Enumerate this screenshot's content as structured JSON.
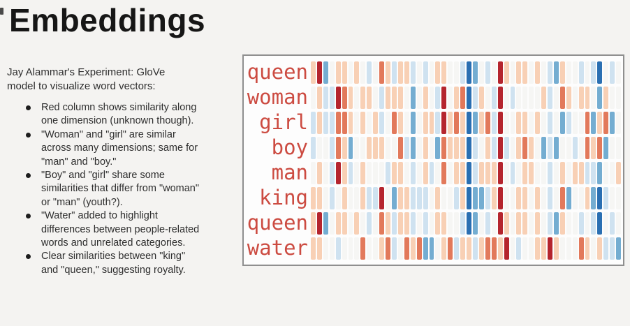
{
  "title": "Embeddings",
  "left_panel": {
    "intro": "Jay Alammar's Experiment: GloVe model to visualize word vectors:",
    "bullets": [
      "Red column shows similarity along one dimension (unknown though).",
      "\"Woman\" and \"girl\" are similar across many dimensions; same for \"man\" and \"boy.\"",
      "\"Boy\" and \"girl\" share some similarities that differ from \"woman\" or \"man\" (youth?).",
      "\"Water\" added to highlight differences between people-related words and unrelated categories.",
      "Clear similarities between \"king\" and \"queen,\" suggesting royalty."
    ]
  },
  "heatmap": {
    "label_color": "#cc4b41",
    "border_color": "#8f8f8f",
    "background": "#fdfdfd",
    "palette": {
      "2": "#b5252e",
      "1": "#e2795b",
      "0.5": "#f8d0b5",
      "0": "#f6f6f4",
      "-0.5": "#cfe2f0",
      "-1": "#74add1",
      "-2": "#2a6fb2"
    }
  },
  "chart_data": {
    "type": "heatmap",
    "title": "GloVe word vectors visualized as colored cells (one row per word, 50 dimensions)",
    "y_labels": [
      "queen",
      "woman",
      "girl",
      "boy",
      "man",
      "king",
      "queen",
      "water"
    ],
    "x_axis": "50 embedding dimensions (unlabeled)",
    "colormap": "diverging red-white-blue (red = high value, blue = low value)",
    "value_levels": {
      "2": "dark red",
      "1": "salmon",
      "0.5": "peach",
      "0": "near-white",
      "-0.5": "light blue",
      "-1": "medium blue",
      "-2": "dark blue"
    },
    "legend": "none shown",
    "grid": false,
    "rows": [
      [
        0.5,
        2,
        -1,
        0,
        0.5,
        0.5,
        0,
        0.5,
        0,
        -0.5,
        0,
        1,
        0.5,
        -0.5,
        0.5,
        0.5,
        -0.5,
        0,
        -0.5,
        0,
        0.5,
        0.5,
        0,
        0,
        -0.5,
        -2,
        -1,
        0,
        -0.5,
        0,
        2,
        0.5,
        0,
        0.5,
        0.5,
        0,
        0.5,
        0,
        -0.5,
        -1,
        0.5,
        0,
        0,
        -0.5,
        0,
        -0.5,
        -2,
        0,
        -0.5,
        0
      ],
      [
        0,
        0.5,
        -0.5,
        -0.5,
        2,
        1,
        0.5,
        0,
        0.5,
        0.5,
        0,
        -0.5,
        0.5,
        0.5,
        0.5,
        0,
        -1,
        0,
        0.5,
        0,
        -0.5,
        2,
        0,
        0.5,
        1,
        -2,
        -0.5,
        0.5,
        0,
        -0.5,
        2,
        0,
        -0.5,
        0,
        0,
        0,
        0,
        0.5,
        -0.5,
        0,
        1,
        0.5,
        0,
        0.5,
        0.5,
        0,
        -1,
        0.5,
        0,
        0
      ],
      [
        -0.5,
        0.5,
        -0.5,
        -0.5,
        1,
        1,
        0.5,
        0,
        0.5,
        0,
        0.5,
        -0.5,
        0,
        1,
        0.5,
        0,
        -1,
        0,
        0.5,
        0.5,
        -0.5,
        2,
        0.5,
        1,
        0.5,
        -2,
        -1,
        0.5,
        1,
        -0.5,
        2,
        0,
        0,
        0.5,
        0.5,
        0,
        0.5,
        0,
        -0.5,
        0,
        -1,
        -0.5,
        0,
        0,
        1,
        -1,
        0.5,
        1,
        -1,
        0
      ],
      [
        -0.5,
        0,
        0,
        -0.5,
        1,
        0.5,
        -1,
        0,
        0,
        0.5,
        0.5,
        0.5,
        0,
        0,
        1,
        -0.5,
        -1,
        0,
        0.5,
        0,
        -1,
        1,
        0.5,
        0.5,
        0.5,
        -2,
        -0.5,
        0,
        0.5,
        -0.5,
        2,
        -0.5,
        0,
        0.5,
        1,
        0.5,
        0,
        -1,
        -0.5,
        -1,
        0,
        0,
        -0.5,
        0,
        1,
        0.5,
        1,
        -1,
        0,
        0
      ],
      [
        0,
        0.5,
        0,
        -0.5,
        2,
        0.5,
        -0.5,
        0,
        0.5,
        0,
        0,
        0,
        -0.5,
        0.5,
        0.5,
        0,
        -0.5,
        0,
        0.5,
        -0.5,
        0,
        1,
        0,
        0.5,
        0.5,
        -2,
        -0.5,
        0.5,
        0.5,
        0.5,
        2,
        0,
        -0.5,
        0,
        0.5,
        0.5,
        0,
        0,
        -0.5,
        0,
        0.5,
        0,
        0.5,
        0.5,
        -0.5,
        -0.5,
        -1,
        0,
        0,
        0.5
      ],
      [
        0.5,
        0.5,
        0,
        -0.5,
        0,
        0.5,
        0,
        0,
        0.5,
        -0.5,
        -0.5,
        2,
        0,
        -1,
        0.5,
        0.5,
        -0.5,
        -0.5,
        -0.5,
        0,
        0.5,
        0,
        0,
        -0.5,
        0.5,
        -2,
        -1,
        -1,
        -0.5,
        0.5,
        2,
        0,
        0,
        0.5,
        0.5,
        0,
        0.5,
        0,
        -0.5,
        0,
        1,
        -1,
        0,
        0,
        0.5,
        -1,
        -2,
        -0.5,
        0,
        0
      ],
      [
        0.5,
        2,
        -1,
        0,
        0.5,
        0.5,
        0,
        0.5,
        0,
        -0.5,
        0,
        1,
        0.5,
        -0.5,
        0.5,
        0.5,
        -0.5,
        0,
        -0.5,
        0,
        0.5,
        0.5,
        0,
        0,
        -0.5,
        -2,
        -1,
        0,
        -0.5,
        0,
        2,
        0.5,
        0,
        0.5,
        0.5,
        0,
        0.5,
        0,
        -0.5,
        -1,
        0.5,
        0,
        0,
        -0.5,
        0,
        -0.5,
        -2,
        0,
        -0.5,
        0
      ],
      [
        0.5,
        0.5,
        0,
        0,
        -0.5,
        0,
        0,
        0,
        1,
        0,
        0,
        0.5,
        1,
        -0.5,
        0,
        1,
        0.5,
        1,
        -1,
        -1,
        0,
        0.5,
        1,
        -0.5,
        0.5,
        0.5,
        -0.5,
        0.5,
        1,
        1,
        0.5,
        2,
        0,
        -0.5,
        0,
        0,
        0.5,
        0.5,
        2,
        0.5,
        0,
        0,
        0,
        1,
        0.5,
        0,
        0.5,
        -0.5,
        -0.5,
        -1
      ]
    ]
  }
}
